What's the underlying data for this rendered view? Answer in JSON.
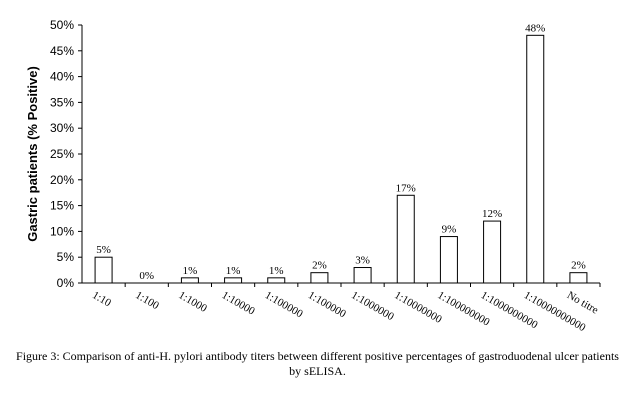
{
  "chart_data": {
    "type": "bar",
    "ylabel": "Gastric  patients (% Positive)",
    "xlabel": "",
    "ylim": [
      0,
      50
    ],
    "yticks": [
      "0%",
      "5%",
      "10%",
      "15%",
      "20%",
      "25%",
      "30%",
      "35%",
      "40%",
      "45%",
      "50%"
    ],
    "categories": [
      "1:10",
      "1:100",
      "1:1000",
      "1:10000",
      "1:100000",
      "1:100000",
      "1:1000000",
      "1:10000000",
      "1:100000000",
      "1:1000000000",
      "1:10000000000",
      "No titre"
    ],
    "values": [
      5,
      0,
      1,
      1,
      1,
      2,
      3,
      17,
      9,
      12,
      48,
      2
    ],
    "data_labels": [
      "5%",
      "0%",
      "1%",
      "1%",
      "1%",
      "2%",
      "3%",
      "17%",
      "9%",
      "12%",
      "48%",
      "2%"
    ],
    "grid": false,
    "bar_fill": "#ffffff",
    "bar_stroke": "#000000"
  },
  "caption": "Figure 3: Comparison of anti-H. pylori antibody titers between different positive percentages of gastroduodenal ulcer patients by sELISA."
}
